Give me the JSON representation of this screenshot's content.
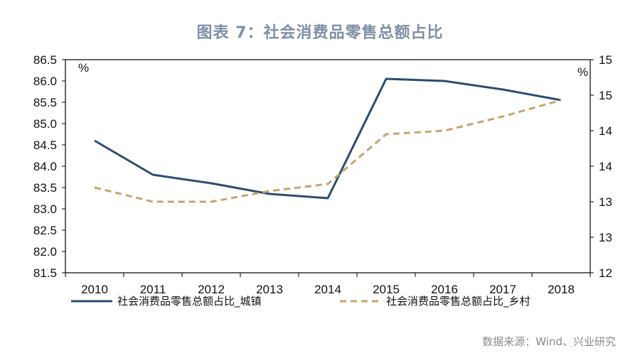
{
  "title": "图表 7：社会消费品零售总额占比",
  "source": "数据来源：Wind、兴业研究",
  "chart_data": {
    "type": "line",
    "categories": [
      "2010",
      "2011",
      "2012",
      "2013",
      "2014",
      "2015",
      "2016",
      "2017",
      "2018"
    ],
    "left_axis": {
      "unit": "%",
      "ylim": [
        81.5,
        86.5
      ],
      "ticks": [
        "81.5",
        "82.0",
        "82.5",
        "83.0",
        "83.5",
        "84.0",
        "84.5",
        "85.0",
        "85.5",
        "86.0",
        "86.5"
      ]
    },
    "right_axis": {
      "unit": "%",
      "ylim": [
        12,
        15
      ],
      "ticks": [
        "12",
        "13",
        "13",
        "14",
        "14",
        "15",
        "15"
      ]
    },
    "series": [
      {
        "name": "社会消费品零售总额占比_城镇",
        "axis": "left",
        "color": "#2b4d6e",
        "style": "solid",
        "values": [
          84.6,
          83.8,
          83.6,
          83.35,
          83.25,
          86.05,
          86.0,
          85.8,
          85.55
        ]
      },
      {
        "name": "社会消费品零售总额占比_乡村",
        "axis": "right",
        "color": "#c8a46a",
        "style": "dashed",
        "values": [
          13.2,
          13.0,
          13.0,
          13.15,
          13.25,
          13.95,
          14.0,
          14.2,
          14.43
        ]
      }
    ],
    "grid": false,
    "legend": "bottom"
  }
}
